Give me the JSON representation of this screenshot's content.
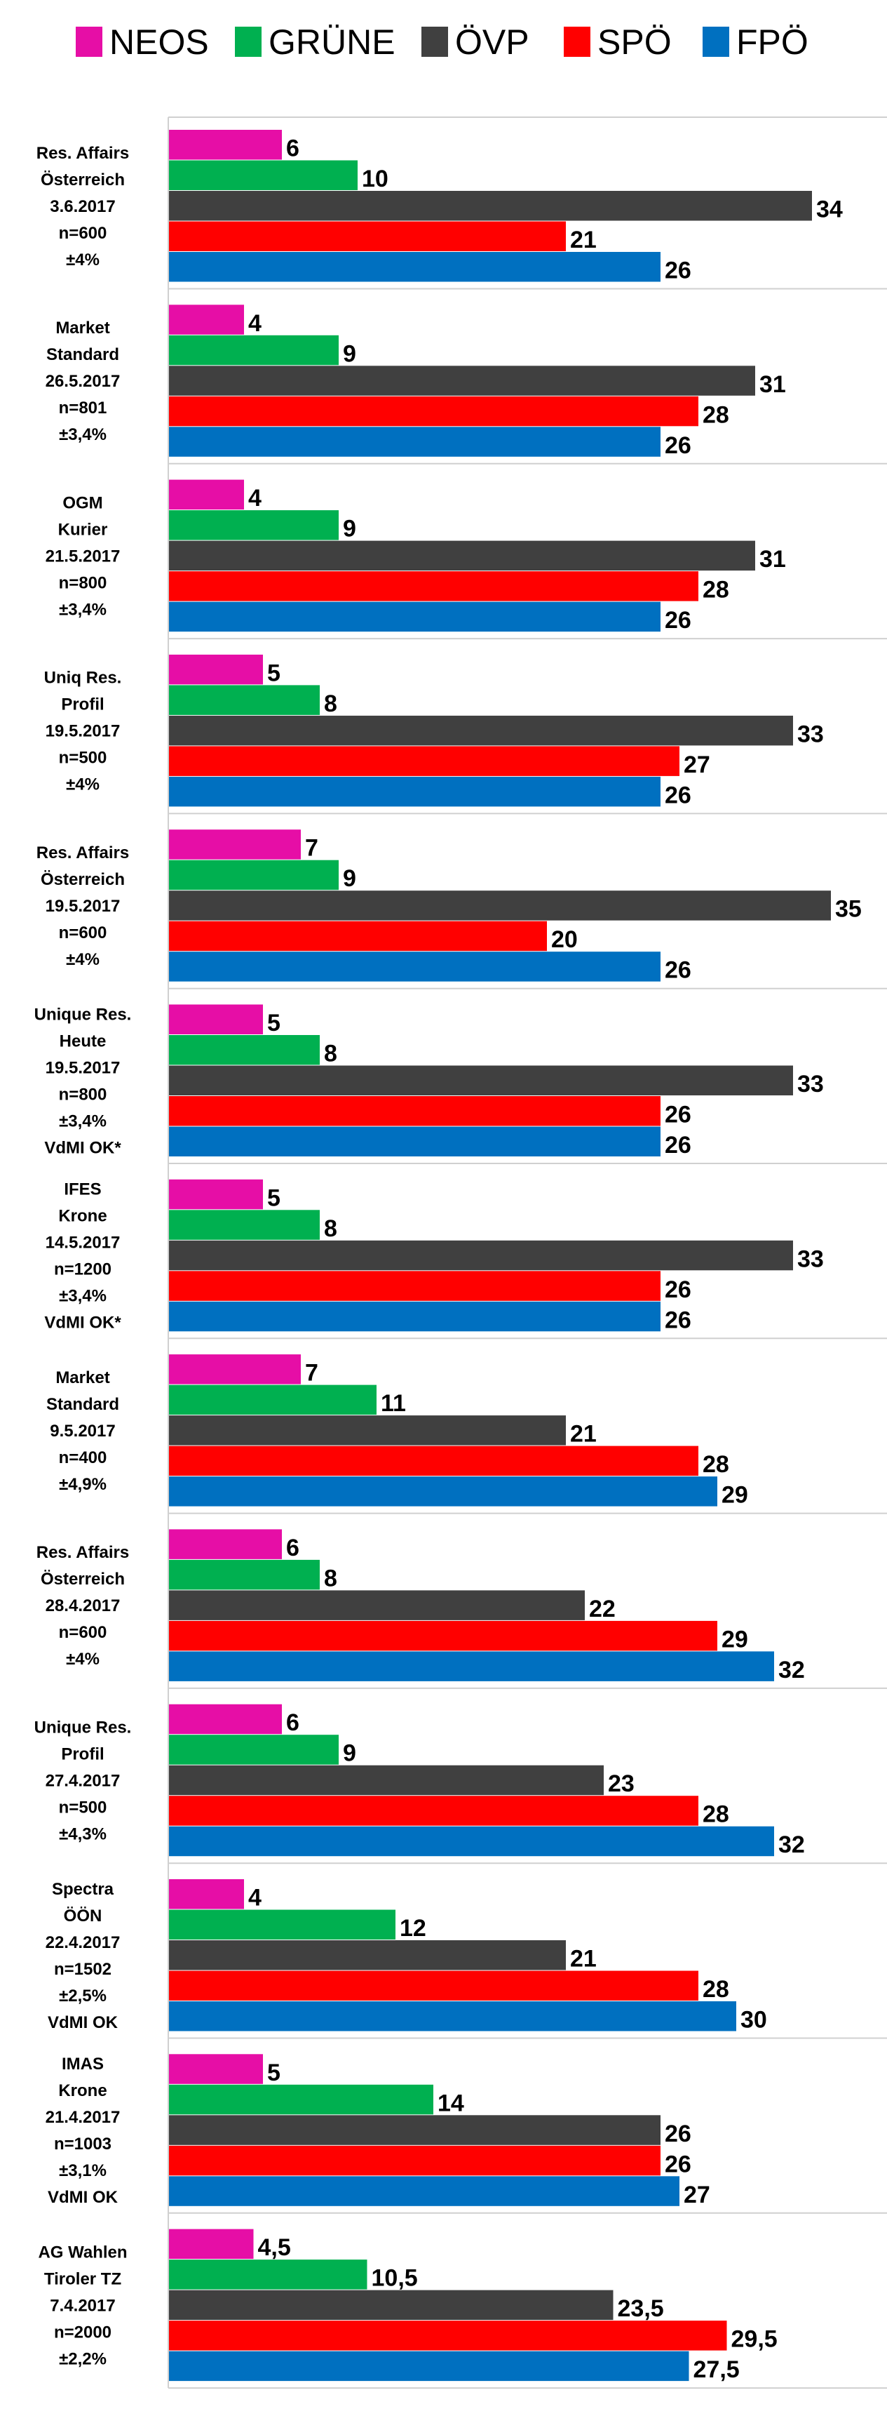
{
  "chart_data": {
    "type": "bar",
    "orientation": "horizontal",
    "legend_position": "top",
    "grid": false,
    "xlim": [
      0,
      35
    ],
    "parties": [
      {
        "name": "NEOS",
        "color": "#e60ea6"
      },
      {
        "name": "GRÜNE",
        "color": "#00b050"
      },
      {
        "name": "ÖVP",
        "color": "#404040"
      },
      {
        "name": "SPÖ",
        "color": "#ff0000"
      },
      {
        "name": "FPÖ",
        "color": "#0070c0"
      }
    ],
    "polls": [
      {
        "label": [
          "Res. Affairs",
          "Österreich",
          "3.6.2017",
          "n=600",
          "±4%"
        ],
        "values": [
          6,
          10,
          34,
          21,
          26
        ],
        "value_labels": [
          "6",
          "10",
          "34",
          "21",
          "26"
        ]
      },
      {
        "label": [
          "Market",
          "Standard",
          "26.5.2017",
          "n=801",
          "±3,4%"
        ],
        "values": [
          4,
          9,
          31,
          28,
          26
        ],
        "value_labels": [
          "4",
          "9",
          "31",
          "28",
          "26"
        ]
      },
      {
        "label": [
          "OGM",
          "Kurier",
          "21.5.2017",
          "n=800",
          "±3,4%"
        ],
        "values": [
          4,
          9,
          31,
          28,
          26
        ],
        "value_labels": [
          "4",
          "9",
          "31",
          "28",
          "26"
        ]
      },
      {
        "label": [
          "Uniq Res.",
          "Profil",
          "19.5.2017",
          "n=500",
          "±4%"
        ],
        "values": [
          5,
          8,
          33,
          27,
          26
        ],
        "value_labels": [
          "5",
          "8",
          "33",
          "27",
          "26"
        ]
      },
      {
        "label": [
          "Res. Affairs",
          "Österreich",
          "19.5.2017",
          "n=600",
          "±4%"
        ],
        "values": [
          7,
          9,
          35,
          20,
          26
        ],
        "value_labels": [
          "7",
          "9",
          "35",
          "20",
          "26"
        ]
      },
      {
        "label": [
          "Unique Res.",
          "Heute",
          "19.5.2017",
          "n=800",
          "±3,4%",
          "VdMI OK*"
        ],
        "values": [
          5,
          8,
          33,
          26,
          26
        ],
        "value_labels": [
          "5",
          "8",
          "33",
          "26",
          "26"
        ]
      },
      {
        "label": [
          "IFES",
          "Krone",
          "14.5.2017",
          "n=1200",
          "±3,4%",
          "VdMI OK*"
        ],
        "values": [
          5,
          8,
          33,
          26,
          26
        ],
        "value_labels": [
          "5",
          "8",
          "33",
          "26",
          "26"
        ]
      },
      {
        "label": [
          "Market",
          "Standard",
          "9.5.2017",
          "n=400",
          "±4,9%"
        ],
        "values": [
          7,
          11,
          21,
          28,
          29
        ],
        "value_labels": [
          "7",
          "11",
          "21",
          "28",
          "29"
        ]
      },
      {
        "label": [
          "Res. Affairs",
          "Österreich",
          "28.4.2017",
          "n=600",
          "±4%"
        ],
        "values": [
          6,
          8,
          22,
          29,
          32
        ],
        "value_labels": [
          "6",
          "8",
          "22",
          "29",
          "32"
        ]
      },
      {
        "label": [
          "Unique Res.",
          "Profil",
          "27.4.2017",
          "n=500",
          "±4,3%"
        ],
        "values": [
          6,
          9,
          23,
          28,
          32
        ],
        "value_labels": [
          "6",
          "9",
          "23",
          "28",
          "32"
        ]
      },
      {
        "label": [
          "Spectra",
          "ÖÖN",
          "22.4.2017",
          "n=1502",
          "±2,5%",
          "VdMI OK"
        ],
        "values": [
          4,
          12,
          21,
          28,
          30
        ],
        "value_labels": [
          "4",
          "12",
          "21",
          "28",
          "30"
        ]
      },
      {
        "label": [
          "IMAS",
          "Krone",
          "21.4.2017",
          "n=1003",
          "±3,1%",
          "VdMI OK"
        ],
        "values": [
          5,
          14,
          26,
          26,
          27
        ],
        "value_labels": [
          "5",
          "14",
          "26",
          "26",
          "27"
        ]
      },
      {
        "label": [
          "AG Wahlen",
          "Tiroler TZ",
          "7.4.2017",
          "n=2000",
          "±2,2%"
        ],
        "values": [
          4.5,
          10.5,
          23.5,
          29.5,
          27.5
        ],
        "value_labels": [
          "4,5",
          "10,5",
          "23,5",
          "29,5",
          "27,5"
        ]
      }
    ]
  }
}
